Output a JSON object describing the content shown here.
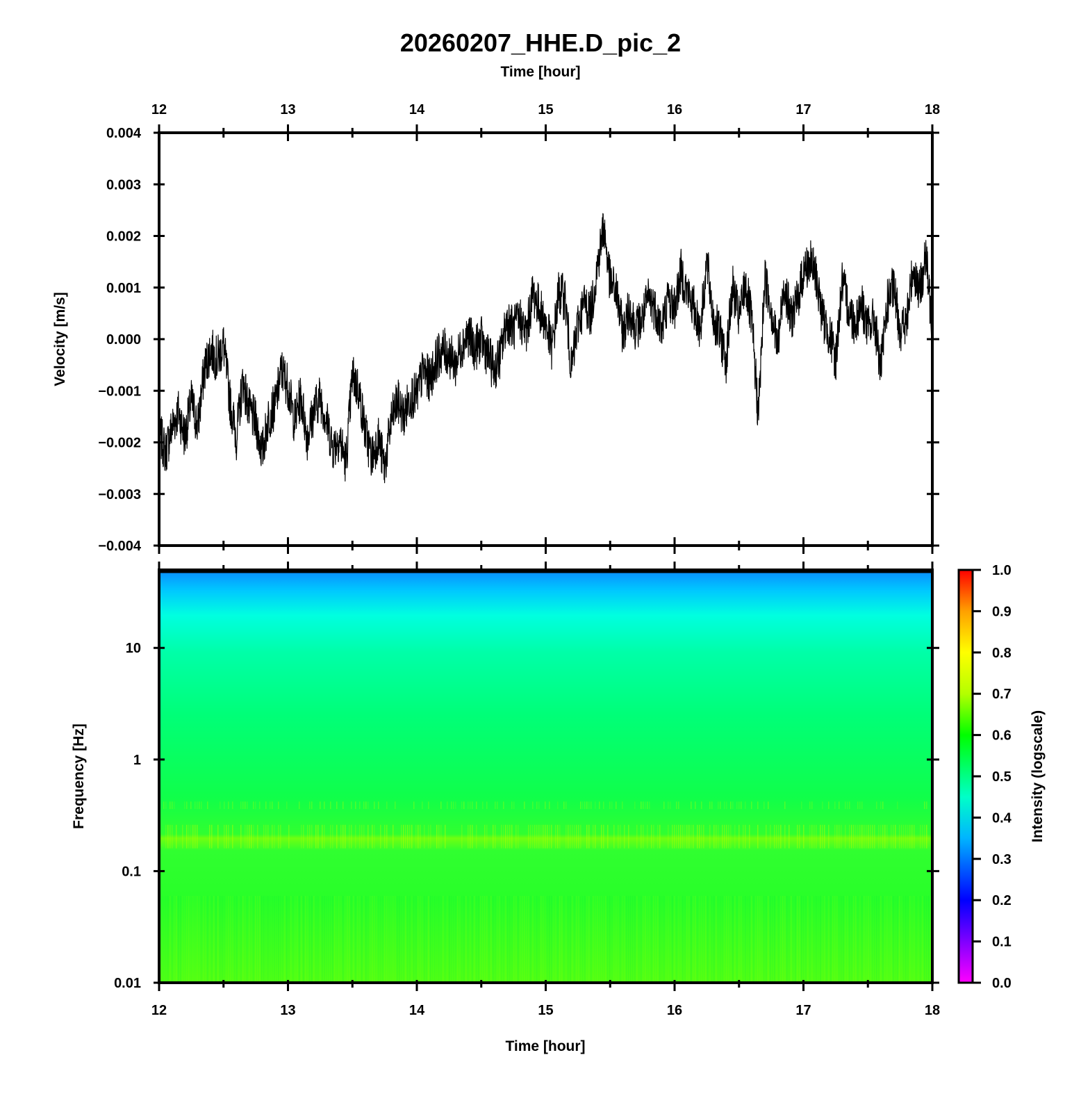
{
  "chart_data": [
    {
      "type": "line",
      "title": "20260207_HHE.D_pic_2",
      "xlabel": "Time [hour]",
      "ylabel": "Velocity [m/s]",
      "xlim": [
        12,
        18
      ],
      "ylim": [
        -0.004,
        0.004
      ],
      "xticks": [
        "12",
        "13",
        "14",
        "15",
        "16",
        "17",
        "18"
      ],
      "yticks": [
        "0.004",
        "0.003",
        "0.002",
        "0.001",
        "0.000",
        "−0.001",
        "−0.002",
        "−0.003",
        "−0.004"
      ],
      "series": [
        {
          "name": "velocity",
          "x": [
            12.0,
            12.05,
            12.1,
            12.15,
            12.2,
            12.25,
            12.3,
            12.35,
            12.4,
            12.45,
            12.5,
            12.55,
            12.6,
            12.65,
            12.7,
            12.75,
            12.8,
            12.85,
            12.9,
            12.95,
            13.0,
            13.05,
            13.1,
            13.15,
            13.2,
            13.25,
            13.3,
            13.35,
            13.4,
            13.45,
            13.5,
            13.55,
            13.6,
            13.65,
            13.7,
            13.75,
            13.8,
            13.85,
            13.9,
            13.95,
            14.0,
            14.05,
            14.1,
            14.15,
            14.2,
            14.25,
            14.3,
            14.35,
            14.4,
            14.45,
            14.5,
            14.55,
            14.6,
            14.65,
            14.7,
            14.75,
            14.8,
            14.85,
            14.9,
            14.95,
            15.0,
            15.05,
            15.1,
            15.15,
            15.2,
            15.25,
            15.3,
            15.35,
            15.4,
            15.45,
            15.5,
            15.55,
            15.6,
            15.65,
            15.7,
            15.75,
            15.8,
            15.85,
            15.9,
            15.95,
            16.0,
            16.05,
            16.1,
            16.15,
            16.2,
            16.25,
            16.3,
            16.35,
            16.4,
            16.45,
            16.5,
            16.55,
            16.6,
            16.65,
            16.7,
            16.75,
            16.8,
            16.85,
            16.9,
            16.95,
            17.0,
            17.05,
            17.1,
            17.15,
            17.2,
            17.25,
            17.3,
            17.35,
            17.4,
            17.45,
            17.5,
            17.55,
            17.6,
            17.65,
            17.7,
            17.75,
            17.8,
            17.85,
            17.9,
            17.95,
            18.0
          ],
          "y": [
            -0.0018,
            -0.0022,
            -0.0017,
            -0.0014,
            -0.0019,
            -0.0012,
            -0.0017,
            -0.0006,
            -0.0002,
            -0.0004,
            -0.0001,
            -0.0012,
            -0.0019,
            -0.0008,
            -0.0014,
            -0.0016,
            -0.0022,
            -0.0015,
            -0.0013,
            -0.0006,
            -0.0009,
            -0.0016,
            -0.0011,
            -0.0019,
            -0.0014,
            -0.0011,
            -0.0016,
            -0.0021,
            -0.0019,
            -0.0024,
            -0.0007,
            -0.001,
            -0.0018,
            -0.0023,
            -0.0019,
            -0.0025,
            -0.0016,
            -0.0012,
            -0.0015,
            -0.0011,
            -0.0011,
            -0.0006,
            -0.0008,
            -0.0004,
            -0.0002,
            -0.0003,
            -0.0005,
            -0.0001,
            0.0001,
            -0.0002,
            0.0,
            -0.0003,
            -0.0006,
            -0.0003,
            0.0004,
            0.0002,
            0.0004,
            0.0001,
            0.0009,
            0.0006,
            0.0003,
            -0.0002,
            0.0009,
            0.0008,
            -0.0006,
            0.0003,
            0.0007,
            0.0005,
            0.0014,
            0.0022,
            0.0011,
            0.0009,
            0.0001,
            0.0006,
            0.0002,
            0.0004,
            0.0008,
            0.0006,
            0.0002,
            0.0008,
            0.0006,
            0.0013,
            0.0009,
            0.0006,
            0.0002,
            0.0015,
            0.0004,
            0.0001,
            -0.0004,
            0.001,
            0.0004,
            0.0011,
            0.0003,
            -0.0015,
            0.0012,
            0.0006,
            -0.0002,
            0.0011,
            0.0004,
            0.0007,
            0.0013,
            0.0015,
            0.0012,
            0.0004,
            0.0001,
            -0.0004,
            0.0011,
            0.0006,
            0.0003,
            0.0007,
            0.0002,
            0.0004,
            -0.0006,
            0.0007,
            0.001,
            0.0002,
            0.0003,
            0.0014,
            0.0009,
            0.0016,
            0.0002
          ]
        }
      ]
    },
    {
      "type": "heatmap",
      "xlabel": "Time [hour]",
      "ylabel": "Frequency [Hz]",
      "xlim": [
        12,
        18
      ],
      "ylim": [
        0.01,
        50
      ],
      "yscale": "log",
      "xticks": [
        "12",
        "13",
        "14",
        "15",
        "16",
        "17",
        "18"
      ],
      "yticks": [
        "10",
        "1",
        "0.1",
        "0.01"
      ],
      "colorbar_label": "Intensity (logscale)",
      "colorbar_range": [
        0.0,
        1.0
      ],
      "colorbar_ticks": [
        "1.0",
        "0.9",
        "0.8",
        "0.7",
        "0.6",
        "0.5",
        "0.4",
        "0.3",
        "0.2",
        "0.1",
        "0.0"
      ],
      "colormap_stops": [
        "#ff00ff",
        "#0000ff",
        "#00b4ff",
        "#00ffc8",
        "#00ff00",
        "#b4ff00",
        "#ffff00",
        "#ffa000",
        "#ff0000"
      ],
      "intensity_profile": {
        "frequency_hz": [
          50,
          30,
          15,
          5,
          1,
          0.4,
          0.2,
          0.05,
          0.01
        ],
        "intensity": [
          0.35,
          0.42,
          0.48,
          0.52,
          0.55,
          0.58,
          0.62,
          0.6,
          0.63
        ]
      }
    }
  ]
}
